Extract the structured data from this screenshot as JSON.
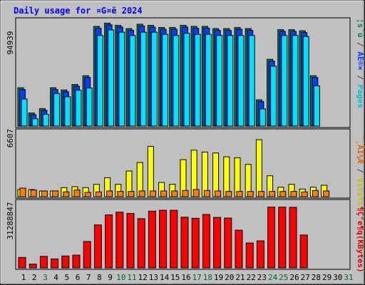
{
  "page": {
    "title": "Daily usage for ¤G¤ë 2024"
  },
  "chart_data": [
    {
      "type": "bar",
      "panel": "top",
      "ymax_label": "94939",
      "ylim": [
        0,
        94939
      ],
      "right_label": {
        "pages": "Pages",
        "sep1": " / ",
        "files": "ÀÉ®×",
        "sep2": " / ",
        "hits": "¦s¨ú"
      },
      "categories": [
        "1",
        "2",
        "3",
        "4",
        "5",
        "6",
        "7",
        "8",
        "9",
        "10",
        "11",
        "12",
        "13",
        "14",
        "15",
        "16",
        "17",
        "18",
        "19",
        "20",
        "21",
        "22",
        "23",
        "24",
        "25",
        "26",
        "27",
        "28",
        "29",
        "30",
        "31"
      ],
      "series": [
        {
          "name": "¦s¨ú",
          "values": [
            35000,
            12000,
            16000,
            35000,
            33000,
            38000,
            46000,
            91000,
            94000,
            92000,
            89000,
            93000,
            92000,
            90000,
            90000,
            92000,
            91000,
            91000,
            89000,
            89000,
            90000,
            89000,
            24000,
            61000,
            88000,
            88000,
            87000,
            46000,
            0,
            0,
            0
          ]
        },
        {
          "name": "ÀÉ®×",
          "values": [
            35000,
            12000,
            16000,
            35000,
            33000,
            38000,
            46000,
            91000,
            94000,
            92000,
            89000,
            93000,
            92000,
            90000,
            90000,
            92000,
            91000,
            91000,
            89000,
            89000,
            90000,
            89000,
            24000,
            61000,
            88000,
            88000,
            87000,
            46000,
            0,
            0,
            0
          ]
        },
        {
          "name": "Pages",
          "values": [
            28000,
            10000,
            14000,
            33000,
            30000,
            36000,
            38000,
            86000,
            91000,
            89000,
            86000,
            89000,
            89000,
            87000,
            86000,
            88000,
            87000,
            87000,
            86000,
            86000,
            86000,
            86000,
            19000,
            58000,
            86000,
            86000,
            85000,
            40000,
            0,
            0,
            0
          ]
        }
      ]
    },
    {
      "type": "bar",
      "panel": "middle",
      "ymax_label": "6607",
      "ylim": [
        0,
        6607
      ],
      "right_label": {
        "visits": "Visits",
        "sep": " / ",
        "sites": "¯¸ÂI¼Æ"
      },
      "categories": [
        "1",
        "2",
        "3",
        "4",
        "5",
        "6",
        "7",
        "8",
        "9",
        "10",
        "11",
        "12",
        "13",
        "14",
        "15",
        "16",
        "17",
        "18",
        "19",
        "20",
        "21",
        "22",
        "23",
        "24",
        "25",
        "26",
        "27",
        "28",
        "29",
        "30",
        "31"
      ],
      "series": [
        {
          "name": "Visits",
          "values": [
            750,
            750,
            600,
            600,
            950,
            1050,
            950,
            1300,
            2000,
            1300,
            2700,
            3600,
            5300,
            1500,
            1300,
            3900,
            4900,
            4700,
            4600,
            4200,
            4100,
            3400,
            6000,
            2200,
            1000,
            1300,
            800,
            1000,
            1200,
            0,
            0
          ]
        },
        {
          "name": "¯¸ÂI¼Æ",
          "values": [
            900,
            700,
            600,
            600,
            500,
            700,
            450,
            500,
            600,
            550,
            550,
            600,
            600,
            600,
            600,
            650,
            750,
            650,
            600,
            550,
            550,
            550,
            550,
            550,
            550,
            550,
            500,
            650,
            600,
            0,
            0
          ]
        }
      ]
    },
    {
      "type": "bar",
      "panel": "bottom",
      "ymax_label": "31288847",
      "ylim": [
        0,
        31288847
      ],
      "right_label": {
        "kbytes": "¶Ç°e¶q(KBytes)"
      },
      "categories": [
        "1",
        "2",
        "3",
        "4",
        "5",
        "6",
        "7",
        "8",
        "9",
        "10",
        "11",
        "12",
        "13",
        "14",
        "15",
        "16",
        "17",
        "18",
        "19",
        "20",
        "21",
        "22",
        "23",
        "24",
        "25",
        "26",
        "27",
        "28",
        "29",
        "30",
        "31"
      ],
      "series": [
        {
          "name": "¶Ç°e¶q(KBytes)",
          "values": [
            5000000,
            1800000,
            5500000,
            4300000,
            5700000,
            6100000,
            12600000,
            20500000,
            25300000,
            26600000,
            26000000,
            23500000,
            27100000,
            27500000,
            27500000,
            24200000,
            23700000,
            25500000,
            24100000,
            23800000,
            18000000,
            11900000,
            12900000,
            29000000,
            29000000,
            28900000,
            15700000,
            0,
            0,
            0,
            0
          ]
        }
      ],
      "x_tick_colors": [
        "#000000",
        "#000000",
        "#006633",
        "#000000",
        "#000000",
        "#000000",
        "#000000",
        "#000000",
        "#000000",
        "#006633",
        "#006633",
        "#000000",
        "#000000",
        "#000000",
        "#000000",
        "#000000",
        "#006633",
        "#006633",
        "#000000",
        "#000000",
        "#000000",
        "#000000",
        "#000000",
        "#006633",
        "#006633",
        "#000000",
        "#000000",
        "#000000",
        "#000000",
        "#000000",
        "#006633"
      ]
    }
  ],
  "colors": {
    "title": "#0000ff",
    "pages": "#00e0ff",
    "files": "#0040ff",
    "hits": "#00805c",
    "visits": "#ffff00",
    "sites": "#ff8000",
    "kbytes": "#ff0000",
    "background": "#c0c0c0"
  }
}
